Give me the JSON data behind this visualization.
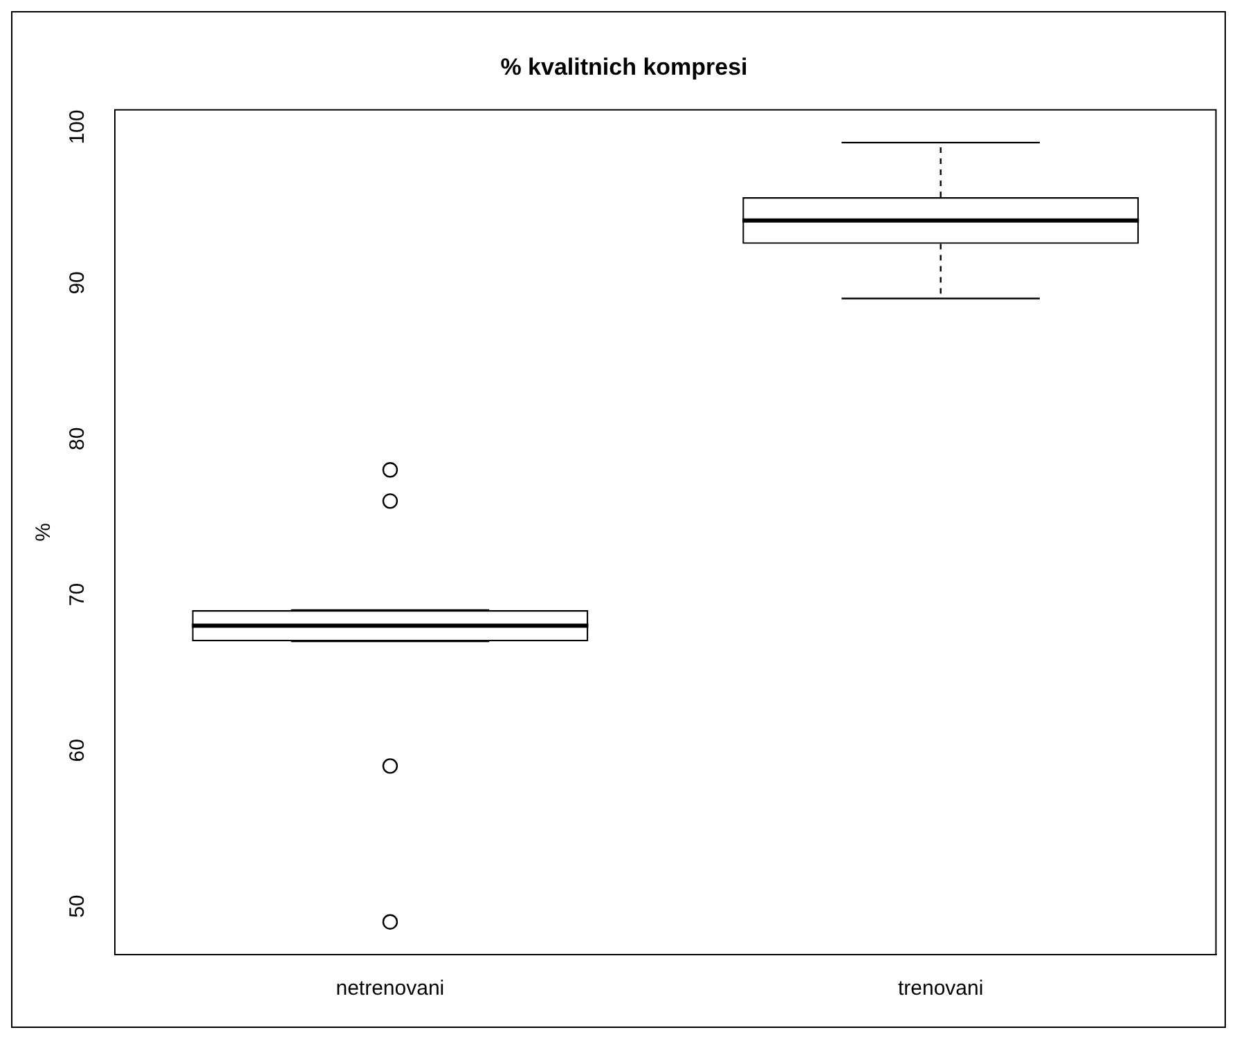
{
  "chart_data": {
    "type": "box",
    "title": "% kvalitnich kompresi",
    "ylabel": "%",
    "categories": [
      "netrenovani",
      "trenovani"
    ],
    "boxes": [
      {
        "low": 67,
        "q1": 67,
        "median": 68,
        "q3": 69,
        "high": 69,
        "outliers": [
          78,
          76,
          59,
          49
        ]
      },
      {
        "low": 89,
        "q1": 92.5,
        "median": 94,
        "q3": 95.5,
        "high": 99
      }
    ],
    "ylim": [
      46.9,
      101.1
    ],
    "yticks": [
      50,
      60,
      70,
      80,
      90,
      100
    ],
    "grid": false,
    "legend": false
  }
}
